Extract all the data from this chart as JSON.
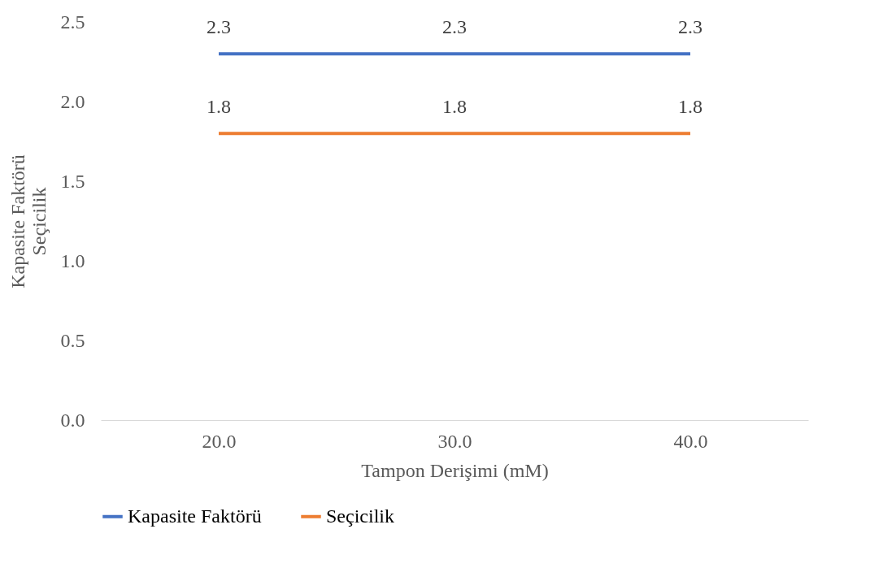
{
  "chart_data": {
    "type": "line",
    "xlabel": "Tampon Derişimi (mM)",
    "ylabel": "Kapasite Faktörü\nSeçicilik",
    "categories": [
      "20.0",
      "30.0",
      "40.0"
    ],
    "series": [
      {
        "name": "Kapasite Faktörü",
        "color": "#4472c4",
        "values": [
          2.3,
          2.3,
          2.3
        ]
      },
      {
        "name": "Seçicilik",
        "color": "#ed7d31",
        "values": [
          1.8,
          1.8,
          1.8
        ]
      }
    ],
    "ylim": [
      0,
      2.5
    ],
    "yticks": [
      {
        "value": 0,
        "label": "0.0"
      },
      {
        "value": 0.5,
        "label": "0.5"
      },
      {
        "value": 1,
        "label": "1.0"
      },
      {
        "value": 1.5,
        "label": "1.5"
      },
      {
        "value": 2,
        "label": "2.0"
      },
      {
        "value": 2.5,
        "label": "2.5"
      }
    ],
    "data_labels": true,
    "grid": false,
    "legend": "bottom",
    "marker": "none",
    "line_style": "solid"
  }
}
